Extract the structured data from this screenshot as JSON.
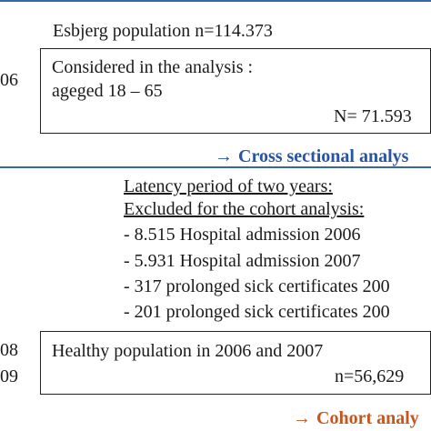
{
  "section1": {
    "header_text": "Esbjerg population n=114.373",
    "left_year": "06",
    "box": {
      "line1": "Considered in the analysis :",
      "line2": "ageged 18 – 65",
      "count": "N= 71.593"
    },
    "analysis_label": "Cross sectional analys",
    "analysis_arrow": "→"
  },
  "section2": {
    "latency_line": "Latency period of two years:",
    "excluded_line": "Excluded for the cohort analysis:",
    "exclusions": [
      "- 8.515 Hospital admission 2006",
      "- 5.931 Hospital admission 2007",
      "- 317 prolonged sick certificates 200",
      "- 201 prolonged sick certificates 200"
    ],
    "left_years": [
      "08",
      "09"
    ],
    "box": {
      "line1": "Healthy population in 2006 and 2007",
      "count": "n=56,629"
    },
    "analysis_label": "Cohort analy",
    "analysis_arrow": "→"
  },
  "colors": {
    "rule_line": "#3a64a8",
    "cross_sectional_label": "#2754a6",
    "cohort_label": "#c8551a"
  }
}
